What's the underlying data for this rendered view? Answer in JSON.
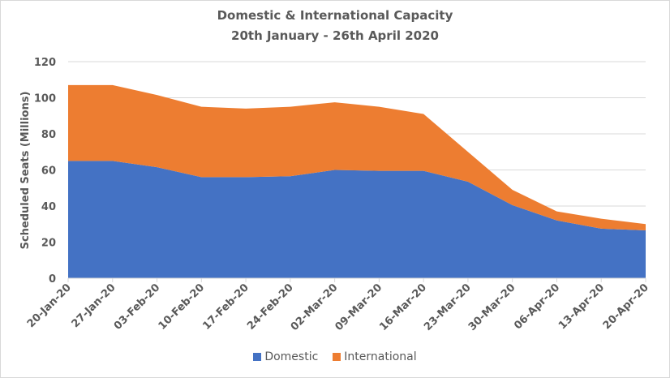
{
  "chart_data": {
    "type": "area",
    "stacked": true,
    "title": "Domestic & International Capacity",
    "subtitle": "20th January - 26th April 2020",
    "xlabel": "",
    "ylabel": "Scheduled Seats (Millions)",
    "ylim": [
      0,
      120
    ],
    "yticks": [
      0,
      20,
      40,
      60,
      80,
      100,
      120
    ],
    "grid": true,
    "legend": "bottom",
    "categories": [
      "20-Jan-20",
      "27-Jan-20",
      "03-Feb-20",
      "10-Feb-20",
      "17-Feb-20",
      "24-Feb-20",
      "02-Mar-20",
      "09-Mar-20",
      "16-Mar-20",
      "23-Mar-20",
      "30-Mar-20",
      "06-Apr-20",
      "13-Apr-20",
      "20-Apr-20"
    ],
    "series": [
      {
        "name": "Domestic",
        "color": "#4472c4",
        "values": [
          65,
          65,
          61.5,
          56,
          56,
          56.5,
          60,
          59.5,
          59.5,
          53.5,
          40.5,
          32,
          27.5,
          26.5
        ]
      },
      {
        "name": "International",
        "color": "#ed7d31",
        "values": [
          42,
          42,
          40,
          39,
          38,
          38.5,
          37.5,
          35.5,
          31.5,
          16.5,
          8.5,
          5,
          5.5,
          3.5
        ]
      }
    ]
  }
}
